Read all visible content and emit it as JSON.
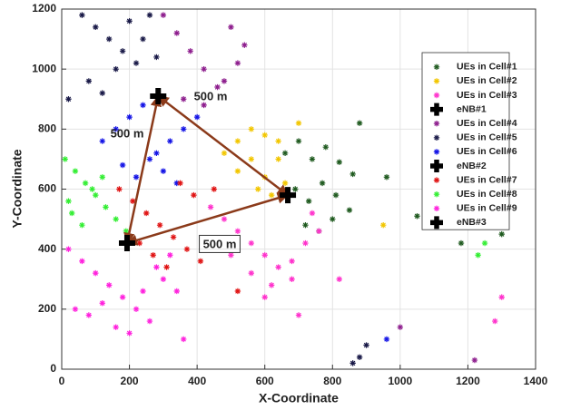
{
  "chart_data": {
    "type": "scatter",
    "xlabel": "X-Coordinate",
    "ylabel": "Y-Coordinate",
    "xlim": [
      0,
      1400
    ],
    "ylim": [
      0,
      1200
    ],
    "xticks": [
      0,
      200,
      400,
      600,
      800,
      1000,
      1200,
      1400
    ],
    "yticks": [
      0,
      200,
      400,
      600,
      800,
      1000,
      1200
    ],
    "grid": true,
    "legend": "right",
    "annotations": [
      "500 m",
      "500 m",
      "500 m"
    ],
    "series": [
      {
        "name": "UEs in Cell#1",
        "color": "#1f5a1f",
        "marker": "*",
        "x": [
          660,
          700,
          740,
          780,
          820,
          860,
          690,
          730,
          770,
          810,
          850,
          720,
          760,
          800,
          880,
          960,
          1050,
          1180,
          1300
        ],
        "y": [
          720,
          760,
          700,
          740,
          690,
          650,
          600,
          560,
          620,
          580,
          530,
          480,
          460,
          500,
          820,
          640,
          510,
          420,
          450
        ]
      },
      {
        "name": "UEs in Cell#2",
        "color": "#f2c600",
        "marker": "*",
        "x": [
          480,
          520,
          560,
          600,
          640,
          520,
          560,
          600,
          640,
          660,
          580,
          620,
          700,
          950
        ],
        "y": [
          720,
          760,
          800,
          780,
          760,
          660,
          700,
          640,
          700,
          620,
          600,
          580,
          820,
          480
        ]
      },
      {
        "name": "UEs in Cell#3",
        "color": "#ff33cc",
        "marker": "*",
        "x": [
          440,
          480,
          520,
          560,
          600,
          640,
          680,
          720,
          760,
          500,
          560,
          620,
          680,
          740,
          600,
          820,
          700,
          1280,
          1300
        ],
        "y": [
          540,
          500,
          460,
          420,
          380,
          340,
          300,
          420,
          460,
          380,
          320,
          280,
          360,
          520,
          240,
          300,
          180,
          160,
          240
        ]
      },
      {
        "name": "eNB#1",
        "color": "#000000",
        "marker": "cross",
        "x": [
          285
        ],
        "y": [
          910
        ]
      },
      {
        "name": "UEs in Cell#4",
        "color": "#8e1f8e",
        "marker": "*",
        "x": [
          300,
          340,
          380,
          420,
          460,
          500,
          540,
          360,
          420,
          480,
          520,
          1200,
          1000,
          1220
        ],
        "y": [
          1180,
          1120,
          1060,
          1000,
          940,
          1140,
          1080,
          900,
          880,
          960,
          1020,
          1040,
          140,
          30
        ]
      },
      {
        "name": "UEs in Cell#5",
        "color": "#1a1a48",
        "marker": "*",
        "x": [
          60,
          100,
          140,
          180,
          220,
          260,
          80,
          120,
          160,
          200,
          240,
          280,
          20,
          880,
          860,
          900
        ],
        "y": [
          1180,
          1140,
          1100,
          1060,
          1020,
          1180,
          960,
          920,
          1000,
          1160,
          1100,
          1040,
          900,
          40,
          20,
          80
        ]
      },
      {
        "name": "UEs in Cell#6",
        "color": "#1414e6",
        "marker": "*",
        "x": [
          120,
          160,
          200,
          240,
          280,
          320,
          360,
          400,
          180,
          220,
          260,
          300,
          340,
          960
        ],
        "y": [
          760,
          800,
          840,
          880,
          720,
          760,
          800,
          840,
          680,
          640,
          700,
          660,
          620,
          100
        ]
      },
      {
        "name": "eNB#2",
        "color": "#000000",
        "marker": "cross",
        "x": [
          668
        ],
        "y": [
          580
        ]
      },
      {
        "name": "UEs in Cell#7",
        "color": "#e01414",
        "marker": "*",
        "x": [
          170,
          210,
          250,
          290,
          330,
          370,
          410,
          450,
          230,
          270,
          310,
          350,
          390,
          520
        ],
        "y": [
          600,
          560,
          520,
          480,
          440,
          400,
          360,
          600,
          420,
          380,
          340,
          620,
          580,
          260
        ]
      },
      {
        "name": "UEs in Cell#8",
        "color": "#33ee33",
        "marker": "*",
        "x": [
          10,
          40,
          70,
          100,
          130,
          160,
          190,
          30,
          60,
          90,
          120,
          20,
          1230,
          1250
        ],
        "y": [
          700,
          660,
          620,
          580,
          540,
          500,
          460,
          520,
          480,
          600,
          640,
          560,
          380,
          420
        ]
      },
      {
        "name": "UEs in Cell#9",
        "color": "#ff22dd",
        "marker": "*",
        "x": [
          20,
          60,
          100,
          140,
          180,
          220,
          260,
          300,
          340,
          80,
          120,
          160,
          200,
          240,
          280,
          320,
          40,
          360
        ],
        "y": [
          400,
          360,
          320,
          280,
          240,
          200,
          160,
          300,
          260,
          180,
          220,
          140,
          120,
          260,
          340,
          380,
          200,
          100
        ]
      },
      {
        "name": "eNB#3",
        "color": "#000000",
        "marker": "cross",
        "x": [
          193
        ],
        "y": [
          420
        ]
      }
    ]
  }
}
